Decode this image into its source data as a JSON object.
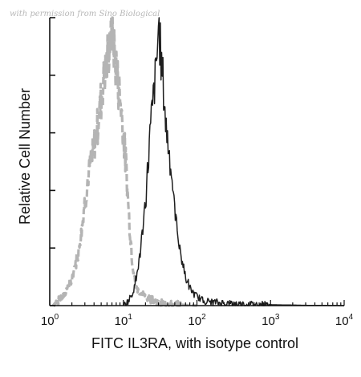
{
  "watermark": "with permission from Sino Biological",
  "chart_data": {
    "type": "line",
    "title": "",
    "xlabel": "FITC IL3RA, with isotype control",
    "ylabel": "Relative Cell Number",
    "x_scale": "log",
    "xlim": [
      1,
      10000
    ],
    "ylim": [
      0,
      100
    ],
    "x_ticks": [
      {
        "base": "10",
        "exp": "0",
        "value": 1
      },
      {
        "base": "10",
        "exp": "1",
        "value": 10
      },
      {
        "base": "10",
        "exp": "2",
        "value": 100
      },
      {
        "base": "10",
        "exp": "3",
        "value": 1000
      },
      {
        "base": "10",
        "exp": "4",
        "value": 10000
      }
    ],
    "grid": false,
    "series": [
      {
        "style": "dashed",
        "color": "#b4b4b4",
        "x": [
          1.1,
          1.5,
          2,
          2.5,
          3,
          3.5,
          4,
          4.5,
          5,
          5.5,
          6,
          6.5,
          7,
          7.5,
          8,
          8.5,
          9,
          9.5,
          10,
          11,
          12,
          13,
          14,
          15,
          16,
          18,
          20,
          25,
          30,
          40,
          60,
          100
        ],
        "y": [
          0,
          3,
          9,
          20,
          36,
          48,
          55,
          63,
          72,
          80,
          84,
          92,
          97,
          89,
          83,
          77,
          73,
          67,
          60,
          47,
          30,
          18,
          10,
          6,
          5,
          4,
          3,
          2,
          1,
          0.5,
          0.3,
          0
        ]
      },
      {
        "style": "solid",
        "color": "#1e1e1e",
        "x": [
          10,
          12,
          14,
          16,
          18,
          20,
          22,
          24,
          26,
          28,
          30,
          32,
          34,
          36,
          38,
          40,
          43,
          46,
          50,
          55,
          60,
          70,
          80,
          100,
          130,
          200,
          400,
          1000,
          3000,
          10000
        ],
        "y": [
          0,
          2,
          6,
          14,
          24,
          36,
          52,
          65,
          74,
          82,
          97,
          89,
          80,
          72,
          62,
          58,
          52,
          43,
          33,
          25,
          18,
          10,
          6,
          3,
          1.5,
          1,
          0.5,
          0.3,
          0.1,
          0
        ]
      }
    ]
  }
}
